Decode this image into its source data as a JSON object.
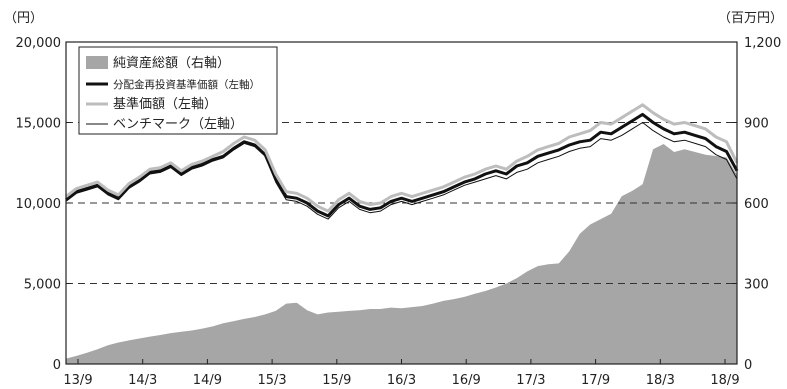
{
  "chart_data": {
    "type": "line",
    "units": {
      "left": "（円）",
      "right": "（百万円）"
    },
    "y_left": {
      "min": 0,
      "max": 20000,
      "ticks": [
        "0",
        "5,000",
        "10,000",
        "15,000",
        "20,000"
      ],
      "values": [
        0,
        5000,
        10000,
        15000,
        20000
      ]
    },
    "y_right": {
      "min": 0,
      "max": 1200,
      "ticks": [
        "0",
        "300",
        "600",
        "900",
        "1,200"
      ],
      "values": [
        0,
        300,
        600,
        900,
        1200
      ]
    },
    "x_ticks": [
      "13/9",
      "14/3",
      "14/9",
      "15/3",
      "15/9",
      "16/3",
      "16/9",
      "17/3",
      "17/9",
      "18/3",
      "18/9"
    ],
    "dashed_gridlines_left": [
      5000,
      10000,
      15000
    ],
    "legend_position": "top-left",
    "legend": [
      {
        "key": "net_assets",
        "label": "純資産総額（右軸）",
        "color": "#a6a6a6",
        "style": "area"
      },
      {
        "key": "reinvested_nav",
        "label": "分配金再投資基準価額（左軸）",
        "color": "#111111",
        "style": "thick-line"
      },
      {
        "key": "nav",
        "label": "基準価額（左軸）",
        "color": "#bdbdbd",
        "style": "thick-line"
      },
      {
        "key": "benchmark",
        "label": "ベンチマーク（左軸）",
        "color": "#111111",
        "style": "thin-line"
      }
    ],
    "series": [
      {
        "key": "net_assets",
        "name": "純資産総額（右軸）",
        "axis": "right",
        "x": [
          0,
          1,
          2,
          3,
          4,
          5,
          6,
          7,
          8,
          9,
          10,
          11,
          12,
          13,
          14,
          15,
          16,
          17,
          18,
          19,
          20,
          21,
          22,
          23,
          24,
          25,
          26,
          27,
          28,
          29,
          30,
          31,
          32,
          33,
          34,
          35,
          36,
          37,
          38,
          39,
          40,
          41,
          42,
          43,
          44,
          45,
          46,
          47,
          48,
          49,
          50,
          51,
          52,
          53,
          54,
          55,
          56,
          57,
          58,
          59,
          60,
          61,
          62,
          63,
          64
        ],
        "values": [
          20,
          30,
          42,
          55,
          70,
          80,
          88,
          95,
          102,
          108,
          115,
          120,
          125,
          132,
          140,
          152,
          160,
          168,
          175,
          185,
          198,
          225,
          228,
          200,
          185,
          192,
          195,
          198,
          200,
          205,
          205,
          210,
          208,
          212,
          216,
          225,
          235,
          242,
          250,
          262,
          272,
          285,
          300,
          320,
          345,
          365,
          372,
          375,
          420,
          485,
          520,
          540,
          560,
          625,
          645,
          670,
          800,
          820,
          790,
          800,
          790,
          780,
          775,
          770,
          705
        ]
      },
      {
        "key": "reinvested_nav",
        "name": "分配金再投資基準価額（左軸）",
        "axis": "left",
        "x": [
          0,
          1,
          2,
          3,
          4,
          5,
          6,
          7,
          8,
          9,
          10,
          11,
          12,
          13,
          14,
          15,
          16,
          17,
          18,
          19,
          20,
          21,
          22,
          23,
          24,
          25,
          26,
          27,
          28,
          29,
          30,
          31,
          32,
          33,
          34,
          35,
          36,
          37,
          38,
          39,
          40,
          41,
          42,
          43,
          44,
          45,
          46,
          47,
          48,
          49,
          50,
          51,
          52,
          53,
          54,
          55,
          56,
          57,
          58,
          59,
          60,
          61,
          62,
          63,
          64
        ],
        "values": [
          10200,
          10700,
          10900,
          11100,
          10600,
          10300,
          11000,
          11400,
          11900,
          12000,
          12300,
          11800,
          12200,
          12400,
          12700,
          12900,
          13400,
          13800,
          13600,
          13000,
          11500,
          10400,
          10300,
          10000,
          9500,
          9200,
          9900,
          10300,
          9800,
          9600,
          9700,
          10100,
          10300,
          10100,
          10300,
          10500,
          10700,
          11000,
          11300,
          11500,
          11800,
          12000,
          11800,
          12300,
          12500,
          12900,
          13100,
          13300,
          13600,
          13800,
          13900,
          14400,
          14300,
          14700,
          15100,
          15500,
          15000,
          14600,
          14300,
          14400,
          14200,
          14000,
          13500,
          13200,
          12000
        ]
      },
      {
        "key": "nav",
        "name": "基準価額（左軸）",
        "axis": "left",
        "x": [
          0,
          1,
          2,
          3,
          4,
          5,
          6,
          7,
          8,
          9,
          10,
          11,
          12,
          13,
          14,
          15,
          16,
          17,
          18,
          19,
          20,
          21,
          22,
          23,
          24,
          25,
          26,
          27,
          28,
          29,
          30,
          31,
          32,
          33,
          34,
          35,
          36,
          37,
          38,
          39,
          40,
          41,
          42,
          43,
          44,
          45,
          46,
          47,
          48,
          49,
          50,
          51,
          52,
          53,
          54,
          55,
          56,
          57,
          58,
          59,
          60,
          61,
          62,
          63,
          64
        ],
        "values": [
          10400,
          10900,
          11100,
          11300,
          10800,
          10500,
          11200,
          11600,
          12100,
          12200,
          12500,
          12000,
          12400,
          12600,
          12900,
          13200,
          13700,
          14100,
          13900,
          13300,
          11800,
          10700,
          10600,
          10300,
          9800,
          9500,
          10200,
          10600,
          10100,
          9900,
          10000,
          10400,
          10600,
          10400,
          10600,
          10800,
          11000,
          11300,
          11600,
          11800,
          12100,
          12300,
          12100,
          12600,
          12900,
          13300,
          13500,
          13700,
          14100,
          14300,
          14500,
          15000,
          14900,
          15300,
          15700,
          16100,
          15600,
          15200,
          14900,
          15000,
          14800,
          14600,
          14100,
          13800,
          12500
        ]
      },
      {
        "key": "benchmark",
        "name": "ベンチマーク（左軸）",
        "axis": "left",
        "x": [
          0,
          1,
          2,
          3,
          4,
          5,
          6,
          7,
          8,
          9,
          10,
          11,
          12,
          13,
          14,
          15,
          16,
          17,
          18,
          19,
          20,
          21,
          22,
          23,
          24,
          25,
          26,
          27,
          28,
          29,
          30,
          31,
          32,
          33,
          34,
          35,
          36,
          37,
          38,
          39,
          40,
          41,
          42,
          43,
          44,
          45,
          46,
          47,
          48,
          49,
          50,
          51,
          52,
          53,
          54,
          55,
          56,
          57,
          58,
          59,
          60,
          61,
          62,
          63,
          64
        ],
        "values": [
          10100,
          10600,
          10800,
          11000,
          10500,
          10200,
          10900,
          11300,
          11800,
          11900,
          12200,
          11700,
          12100,
          12300,
          12600,
          12800,
          13300,
          13700,
          13500,
          12900,
          11300,
          10200,
          10100,
          9800,
          9300,
          9000,
          9700,
          10100,
          9600,
          9400,
          9500,
          9900,
          10100,
          9900,
          10100,
          10300,
          10500,
          10800,
          11100,
          11300,
          11500,
          11700,
          11500,
          11900,
          12100,
          12500,
          12700,
          12900,
          13200,
          13400,
          13500,
          14000,
          13900,
          14200,
          14600,
          15000,
          14500,
          14100,
          13800,
          13900,
          13700,
          13500,
          13000,
          12700,
          11500
        ]
      }
    ]
  }
}
